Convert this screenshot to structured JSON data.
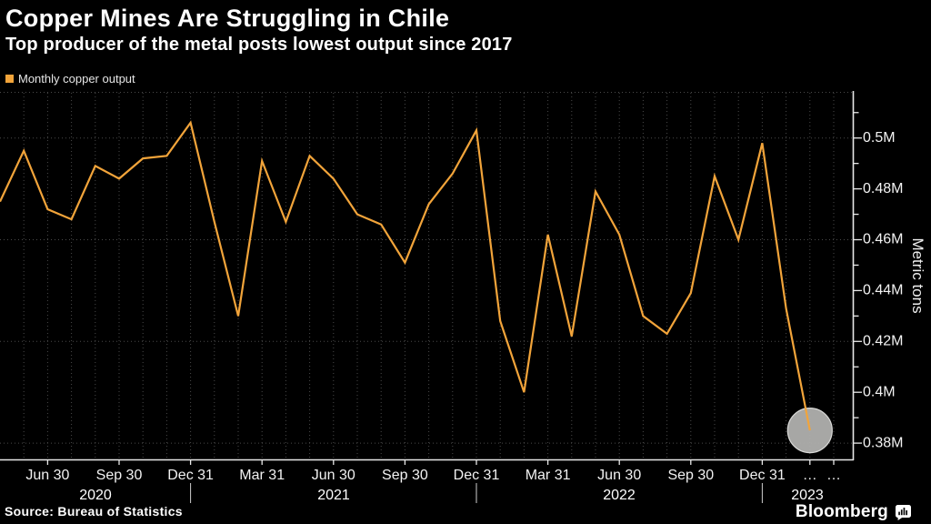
{
  "header": {
    "title": "Copper Mines Are Struggling in Chile",
    "subtitle": "Top producer of the metal posts lowest output since 2017"
  },
  "footer": {
    "source": "Source: Bureau of Statistics",
    "brand": "Bloomberg"
  },
  "colors": {
    "background": "#000000",
    "line": "#f2a43a",
    "grid": "#4a4a4a",
    "axis": "#e8e8e8",
    "text": "#f2f2f2",
    "highlight_fill": "#b0b0ae",
    "highlight_rim": "#d8d8d6"
  },
  "chart_data": {
    "type": "line",
    "title": "Copper Mines Are Struggling in Chile",
    "subtitle": "Top producer of the metal posts lowest output since 2017",
    "ylabel": "Metric tons",
    "xlabel": "",
    "legend_position": "top-left",
    "grid": {
      "style": "dotted",
      "h_gridline_values": [
        0.5,
        0.46,
        0.42,
        0.38
      ],
      "v_gridlines": "monthly"
    },
    "series": [
      {
        "name": "Monthly copper output",
        "color": "#f2a43a",
        "x": [
          "Apr 2020",
          "May 2020",
          "Jun 2020",
          "Jul 2020",
          "Aug 2020",
          "Sep 2020",
          "Oct 2020",
          "Nov 2020",
          "Dec 2020",
          "Jan 2021",
          "Feb 2021",
          "Mar 2021",
          "Apr 2021",
          "May 2021",
          "Jun 2021",
          "Jul 2021",
          "Aug 2021",
          "Sep 2021",
          "Oct 2021",
          "Nov 2021",
          "Dec 2021",
          "Jan 2022",
          "Feb 2022",
          "Mar 2022",
          "Apr 2022",
          "May 2022",
          "Jun 2022",
          "Jul 2022",
          "Aug 2022",
          "Sep 2022",
          "Oct 2022",
          "Nov 2022",
          "Dec 2022",
          "Jan 2023",
          "Feb 2023"
        ],
        "values": [
          0.475,
          0.495,
          0.472,
          0.468,
          0.489,
          0.484,
          0.492,
          0.493,
          0.506,
          0.467,
          0.43,
          0.491,
          0.467,
          0.493,
          0.484,
          0.47,
          0.466,
          0.451,
          0.474,
          0.486,
          0.503,
          0.428,
          0.4,
          0.462,
          0.422,
          0.479,
          0.462,
          0.43,
          0.423,
          0.439,
          0.485,
          0.46,
          0.498,
          0.433,
          0.385
        ]
      }
    ],
    "x_axis": {
      "quarter_tick_labels": [
        "Jun 30",
        "Sep 30",
        "Dec 31",
        "Mar 31",
        "Jun 30",
        "Sep 30",
        "Dec 31",
        "Mar 31",
        "Jun 30",
        "Sep 30",
        "Dec 31"
      ],
      "ellipsis_labels": [
        "…",
        "…"
      ],
      "year_labels": [
        "2020",
        "2021",
        "2022",
        "2023"
      ]
    },
    "y_axis": {
      "side": "right",
      "tick_labels": [
        "0.5M",
        "0.48M",
        "0.46M",
        "0.44M",
        "0.42M",
        "0.4M",
        "0.38M"
      ],
      "tick_values": [
        0.5,
        0.48,
        0.46,
        0.44,
        0.42,
        0.4,
        0.38
      ],
      "minor_tick_step": 0.01,
      "ylim": [
        0.3735,
        0.5185
      ]
    },
    "highlight_last_point": {
      "enabled": true,
      "x": "Feb 2023",
      "value": 0.385
    }
  }
}
